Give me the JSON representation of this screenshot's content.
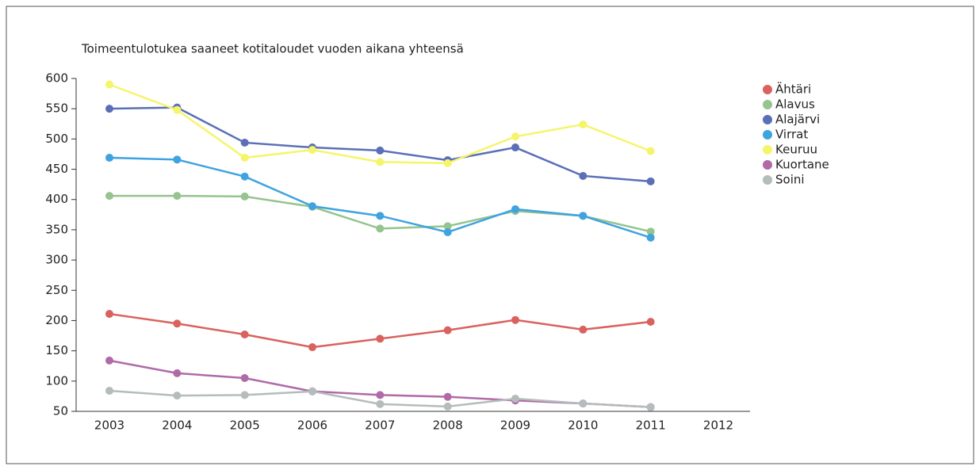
{
  "chart_data": {
    "type": "line",
    "title": "Toimeentulotukea saaneet kotitaloudet vuoden aikana yhteensä",
    "categories": [
      "2003",
      "2004",
      "2005",
      "2006",
      "2007",
      "2008",
      "2009",
      "2010",
      "2011",
      "2012"
    ],
    "ylim": [
      50,
      600
    ],
    "yticks": [
      50,
      100,
      150,
      200,
      250,
      300,
      350,
      400,
      450,
      500,
      550,
      600
    ],
    "grid": false,
    "legend": "right",
    "series": [
      {
        "name": "Ähtäri",
        "color": "#d9625f",
        "values": [
          211,
          195,
          177,
          156,
          170,
          184,
          201,
          185,
          198,
          null
        ]
      },
      {
        "name": "Alavus",
        "color": "#95c48e",
        "values": [
          406,
          406,
          405,
          388,
          352,
          356,
          381,
          373,
          347,
          null
        ]
      },
      {
        "name": "Alajärvi",
        "color": "#5b6fb8",
        "values": [
          550,
          552,
          494,
          486,
          481,
          465,
          486,
          439,
          430,
          null
        ]
      },
      {
        "name": "Virrat",
        "color": "#3fa3e0",
        "values": [
          469,
          466,
          438,
          389,
          373,
          346,
          384,
          373,
          337,
          null
        ]
      },
      {
        "name": "Keuruu",
        "color": "#f5f56a",
        "values": [
          590,
          548,
          469,
          482,
          462,
          460,
          504,
          524,
          480,
          null
        ]
      },
      {
        "name": "Kuortane",
        "color": "#b06aa8",
        "values": [
          134,
          113,
          105,
          83,
          77,
          74,
          68,
          63,
          57,
          null
        ]
      },
      {
        "name": "Soini",
        "color": "#b4bcbc",
        "values": [
          84,
          76,
          77,
          83,
          62,
          58,
          71,
          63,
          57,
          null
        ]
      }
    ]
  }
}
